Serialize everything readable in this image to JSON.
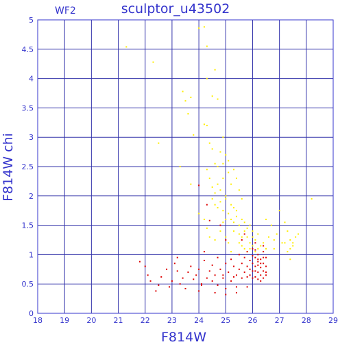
{
  "chart_data": {
    "type": "scatter",
    "title": "sculptor_u43502",
    "tag": "WF2",
    "xlabel": "F814W",
    "ylabel": "F814W chi",
    "xlim": [
      18,
      29
    ],
    "ylim": [
      0,
      5
    ],
    "xticks": [
      "18",
      "19",
      "20",
      "21",
      "22",
      "23",
      "24",
      "25",
      "26",
      "27",
      "28",
      "29"
    ],
    "yticks": [
      "0",
      "0.5",
      "1",
      "1.5",
      "2",
      "2.5",
      "3",
      "3.5",
      "4",
      "4.5",
      "5"
    ],
    "grid": true,
    "colors": {
      "axis": "#3333cc",
      "grid": "#3333aa",
      "yellow": "#ffee00",
      "red": "#dd0000"
    },
    "series": [
      {
        "color": "yellow",
        "points": [
          [
            21.3,
            4.54
          ],
          [
            22.3,
            4.28
          ],
          [
            23.4,
            3.78
          ],
          [
            23.5,
            3.62
          ],
          [
            23.6,
            3.4
          ],
          [
            23.7,
            3.68
          ],
          [
            23.8,
            3.04
          ],
          [
            24.0,
            4.86
          ],
          [
            24.2,
            4.88
          ],
          [
            24.3,
            4.55
          ],
          [
            24.3,
            4.0
          ],
          [
            24.6,
            4.15
          ],
          [
            24.7,
            3.65
          ],
          [
            24.5,
            3.7
          ],
          [
            24.2,
            3.22
          ],
          [
            24.3,
            3.2
          ],
          [
            24.4,
            2.9
          ],
          [
            24.5,
            2.8
          ],
          [
            24.6,
            2.55
          ],
          [
            24.7,
            2.5
          ],
          [
            24.8,
            2.75
          ],
          [
            24.9,
            2.55
          ],
          [
            24.3,
            2.45
          ],
          [
            24.4,
            2.3
          ],
          [
            24.5,
            2.15
          ],
          [
            24.6,
            2.05
          ],
          [
            24.7,
            2.2
          ],
          [
            24.8,
            2.1
          ],
          [
            24.9,
            2.3
          ],
          [
            25.0,
            2.0
          ],
          [
            25.1,
            2.4
          ],
          [
            25.2,
            2.2
          ],
          [
            24.5,
            1.95
          ],
          [
            24.6,
            1.85
          ],
          [
            24.7,
            1.8
          ],
          [
            24.8,
            1.9
          ],
          [
            24.9,
            1.75
          ],
          [
            25.0,
            1.95
          ],
          [
            25.1,
            1.7
          ],
          [
            25.2,
            1.85
          ],
          [
            25.3,
            1.8
          ],
          [
            25.4,
            1.75
          ],
          [
            25.0,
            1.6
          ],
          [
            25.2,
            1.6
          ],
          [
            25.3,
            1.55
          ],
          [
            25.4,
            1.65
          ],
          [
            25.5,
            1.5
          ],
          [
            25.6,
            1.6
          ],
          [
            25.7,
            1.55
          ],
          [
            25.8,
            1.45
          ],
          [
            25.9,
            1.5
          ],
          [
            26.0,
            1.4
          ],
          [
            25.3,
            1.4
          ],
          [
            25.5,
            1.35
          ],
          [
            25.6,
            1.3
          ],
          [
            25.7,
            1.4
          ],
          [
            25.8,
            1.3
          ],
          [
            25.9,
            1.2
          ],
          [
            26.0,
            1.3
          ],
          [
            26.1,
            1.25
          ],
          [
            26.2,
            1.35
          ],
          [
            26.3,
            1.15
          ],
          [
            25.5,
            1.2
          ],
          [
            25.6,
            1.15
          ],
          [
            25.7,
            1.1
          ],
          [
            25.8,
            1.05
          ],
          [
            25.9,
            1.1
          ],
          [
            26.0,
            1.15
          ],
          [
            26.1,
            1.05
          ],
          [
            26.2,
            1.1
          ],
          [
            26.4,
            1.2
          ],
          [
            26.5,
            1.1
          ],
          [
            24.0,
            1.7
          ],
          [
            24.2,
            1.6
          ],
          [
            24.3,
            1.45
          ],
          [
            24.4,
            1.3
          ],
          [
            24.6,
            1.25
          ],
          [
            24.8,
            1.4
          ],
          [
            24.9,
            1.55
          ],
          [
            25.0,
            1.3
          ],
          [
            25.1,
            1.2
          ],
          [
            25.2,
            1.05
          ],
          [
            27.0,
            1.75
          ],
          [
            27.2,
            1.55
          ],
          [
            27.3,
            1.4
          ],
          [
            27.4,
            1.25
          ],
          [
            27.5,
            1.15
          ],
          [
            27.6,
            1.3
          ],
          [
            27.3,
            1.05
          ],
          [
            27.1,
            1.2
          ],
          [
            26.9,
            1.35
          ],
          [
            26.8,
            1.1
          ],
          [
            27.5,
            1.2
          ],
          [
            27.2,
            1.2
          ],
          [
            27.4,
            1.1
          ],
          [
            26.7,
            1.5
          ],
          [
            26.6,
            1.3
          ],
          [
            26.8,
            1.25
          ],
          [
            27.7,
            1.35
          ],
          [
            28.2,
            1.95
          ],
          [
            27.4,
            0.92
          ],
          [
            26.5,
            1.6
          ],
          [
            22.5,
            2.9
          ],
          [
            23.3,
            2.5
          ],
          [
            23.7,
            2.2
          ],
          [
            24.9,
            3.0
          ],
          [
            25.0,
            2.7
          ],
          [
            25.3,
            2.45
          ],
          [
            25.4,
            2.3
          ],
          [
            25.5,
            2.1
          ],
          [
            25.6,
            1.95
          ],
          [
            25.1,
            2.6
          ]
        ]
      },
      {
        "color": "red",
        "points": [
          [
            21.8,
            0.88
          ],
          [
            22.0,
            0.8
          ],
          [
            22.1,
            0.65
          ],
          [
            22.2,
            0.55
          ],
          [
            22.4,
            0.38
          ],
          [
            22.5,
            0.48
          ],
          [
            22.6,
            0.62
          ],
          [
            22.8,
            0.75
          ],
          [
            23.0,
            0.55
          ],
          [
            23.1,
            0.85
          ],
          [
            23.2,
            0.72
          ],
          [
            23.3,
            0.5
          ],
          [
            23.4,
            0.6
          ],
          [
            23.5,
            0.42
          ],
          [
            23.6,
            0.7
          ],
          [
            23.7,
            0.8
          ],
          [
            23.8,
            0.58
          ],
          [
            23.9,
            0.65
          ],
          [
            24.0,
            0.75
          ],
          [
            24.0,
            0.38
          ],
          [
            24.1,
            0.48
          ],
          [
            24.2,
            0.9
          ],
          [
            24.3,
            0.6
          ],
          [
            24.4,
            0.72
          ],
          [
            24.5,
            0.82
          ],
          [
            24.5,
            0.55
          ],
          [
            24.6,
            0.65
          ],
          [
            24.7,
            0.95
          ],
          [
            24.7,
            0.48
          ],
          [
            24.8,
            0.75
          ],
          [
            24.9,
            0.6
          ],
          [
            25.0,
            0.85
          ],
          [
            25.0,
            0.42
          ],
          [
            25.1,
            0.7
          ],
          [
            25.2,
            0.92
          ],
          [
            25.2,
            0.55
          ],
          [
            25.3,
            0.8
          ],
          [
            25.4,
            0.65
          ],
          [
            25.4,
            0.45
          ],
          [
            25.5,
            0.75
          ],
          [
            25.5,
            1.0
          ],
          [
            25.6,
            0.85
          ],
          [
            25.6,
            0.6
          ],
          [
            25.7,
            0.95
          ],
          [
            25.7,
            0.7
          ],
          [
            25.8,
            1.05
          ],
          [
            25.8,
            0.8
          ],
          [
            25.9,
            0.9
          ],
          [
            25.9,
            0.65
          ],
          [
            26.0,
            1.1
          ],
          [
            26.0,
            0.85
          ],
          [
            26.0,
            0.72
          ],
          [
            26.1,
            0.95
          ],
          [
            26.1,
            0.8
          ],
          [
            26.1,
            0.62
          ],
          [
            26.2,
            1.0
          ],
          [
            26.2,
            0.88
          ],
          [
            26.2,
            0.7
          ],
          [
            26.3,
            0.92
          ],
          [
            26.3,
            0.78
          ],
          [
            26.3,
            0.65
          ],
          [
            26.4,
            1.05
          ],
          [
            26.4,
            0.85
          ],
          [
            26.4,
            0.72
          ],
          [
            26.5,
            0.95
          ],
          [
            26.5,
            0.8
          ],
          [
            26.5,
            0.65
          ],
          [
            26.0,
            0.98
          ],
          [
            26.1,
            1.08
          ],
          [
            26.2,
            0.58
          ],
          [
            26.3,
            0.55
          ],
          [
            26.4,
            0.6
          ],
          [
            26.5,
            0.7
          ],
          [
            26.0,
            0.6
          ],
          [
            25.9,
            0.75
          ],
          [
            25.8,
            0.62
          ],
          [
            26.1,
            0.72
          ],
          [
            26.2,
            0.82
          ],
          [
            26.3,
            0.85
          ],
          [
            26.4,
            0.95
          ],
          [
            24.0,
            2.18
          ],
          [
            24.3,
            1.85
          ],
          [
            24.4,
            1.58
          ],
          [
            24.8,
            1.5
          ],
          [
            25.0,
            1.25
          ],
          [
            24.2,
            1.05
          ],
          [
            25.6,
            1.25
          ],
          [
            25.7,
            1.35
          ],
          [
            26.1,
            1.2
          ],
          [
            26.4,
            1.15
          ],
          [
            23.2,
            0.95
          ],
          [
            22.9,
            0.45
          ],
          [
            24.6,
            0.35
          ],
          [
            25.0,
            0.32
          ],
          [
            25.4,
            0.35
          ],
          [
            25.8,
            0.45
          ],
          [
            24.1,
            0.5
          ],
          [
            24.9,
            0.65
          ],
          [
            25.3,
            0.62
          ],
          [
            26.2,
            0.92
          ]
        ]
      }
    ]
  }
}
